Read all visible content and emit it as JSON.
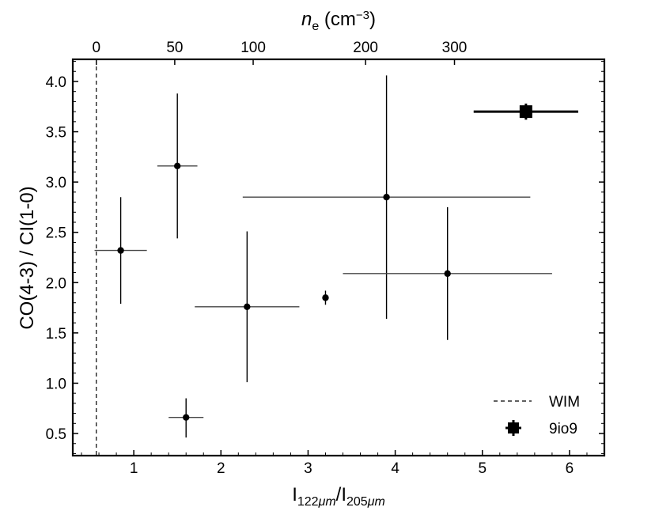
{
  "chart_data": {
    "type": "scatter",
    "xlim": [
      0.3,
      6.4
    ],
    "ylim": [
      0.28,
      4.22
    ],
    "x_ticks": [
      1,
      2,
      3,
      4,
      5,
      6
    ],
    "x_tick_labels": [
      "1",
      "2",
      "3",
      "4",
      "5",
      "6"
    ],
    "y_ticks": [
      0.5,
      1.0,
      1.5,
      2.0,
      2.5,
      3.0,
      3.5,
      4.0
    ],
    "y_tick_labels": [
      "0.5",
      "1.0",
      "1.5",
      "2.0",
      "2.5",
      "3.0",
      "3.5",
      "4.0"
    ],
    "x_label": {
      "main": "I",
      "sub1": "122",
      "unit1": "μm",
      "slash": "/I",
      "sub2": "205",
      "unit2": "μm"
    },
    "y_label": "CO(4-3) / CI(1-0)",
    "top_axis": {
      "label_italic": "n",
      "label_sub": "e",
      "label_rest": " (cm",
      "label_sup": "−3",
      "label_close": ")",
      "ticks": [
        {
          "x": 0.57,
          "label": "0"
        },
        {
          "x": 1.47,
          "label": "50"
        },
        {
          "x": 2.37,
          "label": "100"
        },
        {
          "x": 3.66,
          "label": "200"
        },
        {
          "x": 4.68,
          "label": "300"
        }
      ]
    },
    "wim_line_x": 0.57,
    "grid": false,
    "legend_position": "lower-right",
    "series": [
      {
        "name": "",
        "marker": "circle",
        "color": "#000000",
        "points": [
          {
            "x": 0.85,
            "y": 2.32,
            "xerr": [
              0.3,
              0.3
            ],
            "yerr": [
              0.53,
              0.53
            ]
          },
          {
            "x": 1.5,
            "y": 3.16,
            "xerr": [
              0.23,
              0.23
            ],
            "yerr": [
              0.72,
              0.72
            ]
          },
          {
            "x": 1.6,
            "y": 0.66,
            "xerr": [
              0.2,
              0.2
            ],
            "yerr": [
              0.2,
              0.19
            ]
          },
          {
            "x": 2.3,
            "y": 1.76,
            "xerr": [
              0.6,
              0.6
            ],
            "yerr": [
              0.75,
              0.75
            ]
          },
          {
            "x": 3.2,
            "y": 1.85,
            "xerr": [
              0,
              0
            ],
            "yerr": [
              0.07,
              0.07
            ]
          },
          {
            "x": 3.9,
            "y": 2.85,
            "xerr": [
              1.65,
              1.65
            ],
            "yerr": [
              1.21,
              1.21
            ]
          },
          {
            "x": 4.6,
            "y": 2.09,
            "xerr": [
              1.2,
              1.2
            ],
            "yerr": [
              0.66,
              0.66
            ]
          }
        ]
      },
      {
        "name": "9io9",
        "marker": "square",
        "color": "#000000",
        "points": [
          {
            "x": 5.5,
            "y": 3.7,
            "xerr": [
              0.6,
              0.6
            ],
            "yerr": [
              0.08,
              0.08
            ]
          }
        ]
      }
    ],
    "legend": [
      {
        "label": "WIM",
        "style": "dashed-line"
      },
      {
        "label": "9io9",
        "style": "square-marker"
      }
    ]
  }
}
